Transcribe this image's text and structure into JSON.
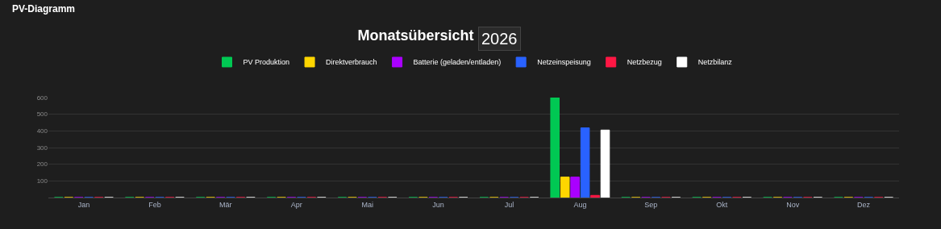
{
  "chart_data": {
    "type": "bar",
    "title": "Monatsübersicht",
    "subtitle": "2026",
    "annotations": [
      "PV-Diagramm"
    ],
    "categories": [
      "Jan",
      "Feb",
      "Mär",
      "Apr",
      "Mai",
      "Jun",
      "Jul",
      "Aug",
      "Sep",
      "Okt",
      "Nov",
      "Dez"
    ],
    "series": [
      {
        "name": "PV Produktion",
        "color": "#00c853",
        "values": [
          0,
          0,
          0,
          0,
          0,
          0,
          0,
          600,
          0,
          0,
          0,
          0
        ]
      },
      {
        "name": "Direktverbrauch",
        "color": "#ffd600",
        "values": [
          0,
          0,
          0,
          0,
          0,
          0,
          0,
          123,
          0,
          0,
          0,
          0
        ]
      },
      {
        "name": "Batterie (geladen/entladen)",
        "color": "#aa00ff",
        "values": [
          0,
          0,
          0,
          0,
          0,
          0,
          0,
          123,
          0,
          0,
          0,
          0
        ]
      },
      {
        "name": "Netzeinspeisung",
        "color": "#2962ff",
        "values": [
          0,
          0,
          0,
          0,
          0,
          0,
          0,
          418,
          0,
          0,
          0,
          0
        ]
      },
      {
        "name": "Netzbezug",
        "color": "#ff1744",
        "values": [
          0,
          0,
          0,
          0,
          0,
          0,
          0,
          13,
          0,
          0,
          0,
          0
        ]
      },
      {
        "name": "Netzbilanz",
        "color": "#ffffff",
        "values": [
          0,
          0,
          0,
          0,
          0,
          0,
          0,
          405,
          0,
          0,
          0,
          0
        ]
      }
    ],
    "ylim": [
      0,
      600
    ],
    "yticks": [
      100,
      200,
      300,
      400,
      500,
      600
    ],
    "grid": "y",
    "legend": "top"
  }
}
